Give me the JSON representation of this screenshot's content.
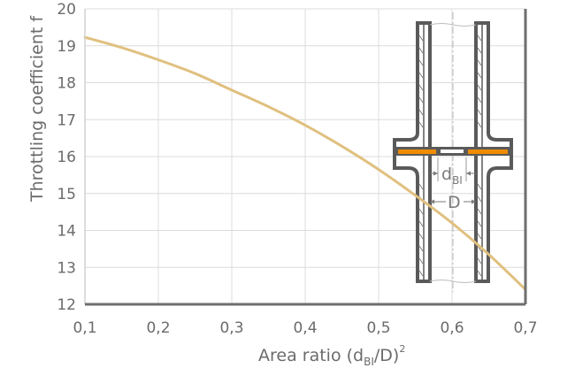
{
  "chart_data": {
    "type": "line",
    "title": "",
    "xlabel": "Area ratio (d_BI/D)^2",
    "xlabel_parts": {
      "main": "Area ratio (d",
      "sub": "BI",
      "after": "/D)",
      "sup": "2"
    },
    "ylabel": "Throttling coefficient f",
    "xlim": [
      0.1,
      0.7
    ],
    "ylim": [
      12,
      20
    ],
    "x_ticks": [
      "0,1",
      "0,2",
      "0,3",
      "0,4",
      "0,5",
      "0,6",
      "0,7"
    ],
    "y_ticks": [
      "12",
      "13",
      "14",
      "15",
      "16",
      "17",
      "18",
      "19",
      "20"
    ],
    "grid": true,
    "legend": null,
    "series": [
      {
        "name": "Throttling coefficient f",
        "color": "#e0c07f",
        "x": [
          0.1,
          0.15,
          0.2,
          0.25,
          0.3,
          0.35,
          0.4,
          0.45,
          0.5,
          0.55,
          0.6,
          0.65,
          0.7
        ],
        "values": [
          19.23,
          18.95,
          18.62,
          18.25,
          17.8,
          17.35,
          16.85,
          16.28,
          15.65,
          14.95,
          14.2,
          13.35,
          12.4
        ]
      }
    ],
    "annotations": [
      {
        "type": "inset-diagram",
        "description": "Pipe cross-section with orifice plate",
        "labels": [
          "d_BI",
          "D"
        ]
      }
    ]
  },
  "labels": {
    "ylabel": "Throttling coefficient f",
    "xlabel_main": "Area ratio (d",
    "xlabel_sub": "BI",
    "xlabel_after": "/D)",
    "xlabel_sup": "2",
    "diagram_d_main": "d",
    "diagram_d_sub": "BI",
    "diagram_D": "D"
  },
  "colors": {
    "curve": "#e0c07f",
    "axis": "#6e6e6e",
    "grid": "#dcdcdc",
    "pipe": "#5a5a5a",
    "orifice": "#f08c00",
    "text": "#6b6b6b"
  }
}
